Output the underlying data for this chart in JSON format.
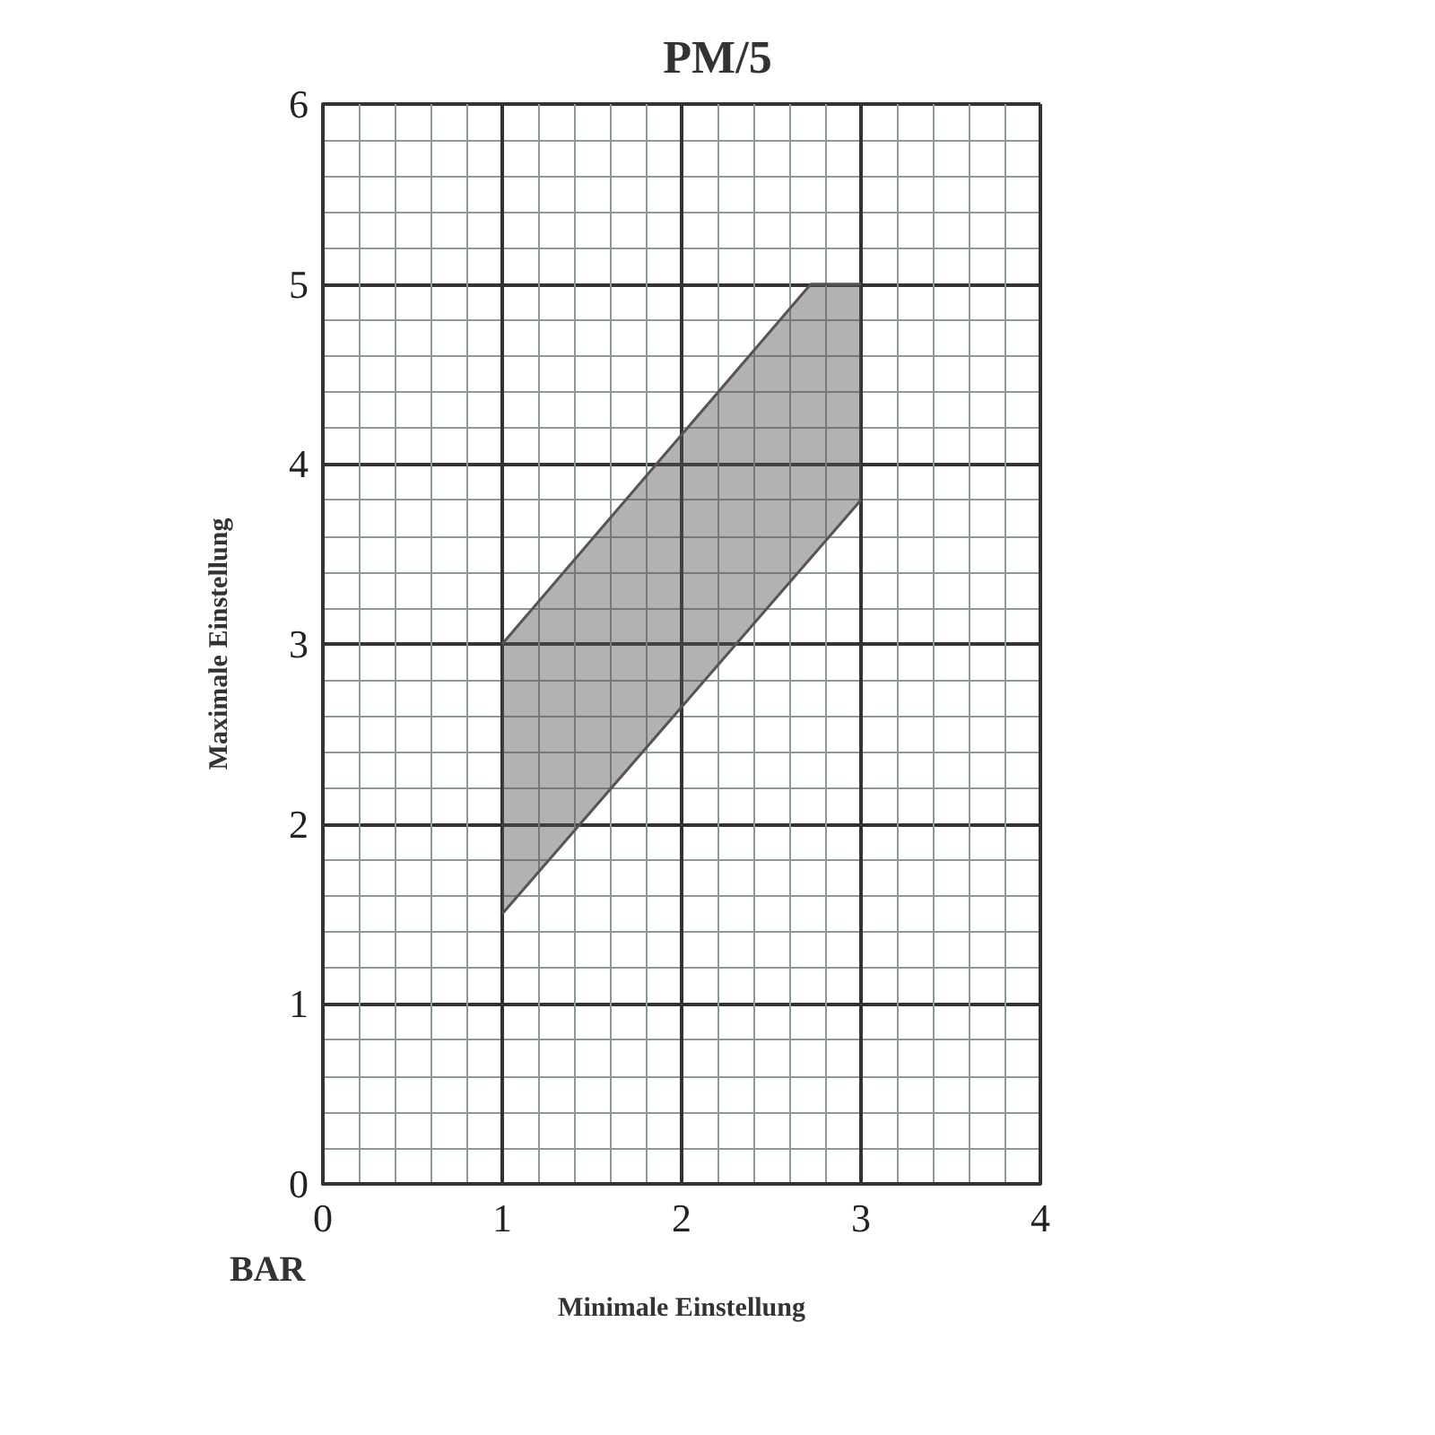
{
  "chart_data": {
    "type": "area",
    "title": "PM/5",
    "xlabel": "Minimale Einstellung",
    "ylabel": "Maximale Einstellung",
    "annotations": [
      "BAR"
    ],
    "series": [
      {
        "color": "#555555",
        "x": [
          1,
          2.72,
          3
        ],
        "values": [
          3,
          5,
          5
        ]
      },
      {
        "type": "line",
        "color": "#555555",
        "x": [
          1,
          3
        ],
        "values": [
          1.5,
          3.8
        ]
      }
    ],
    "xlim": [
      0,
      4
    ],
    "xticks": [
      0,
      1,
      2,
      3,
      4
    ],
    "ylim": [
      0,
      6
    ],
    "yticks": [
      0,
      1,
      2,
      3,
      4,
      5,
      6
    ],
    "grid": true
  }
}
